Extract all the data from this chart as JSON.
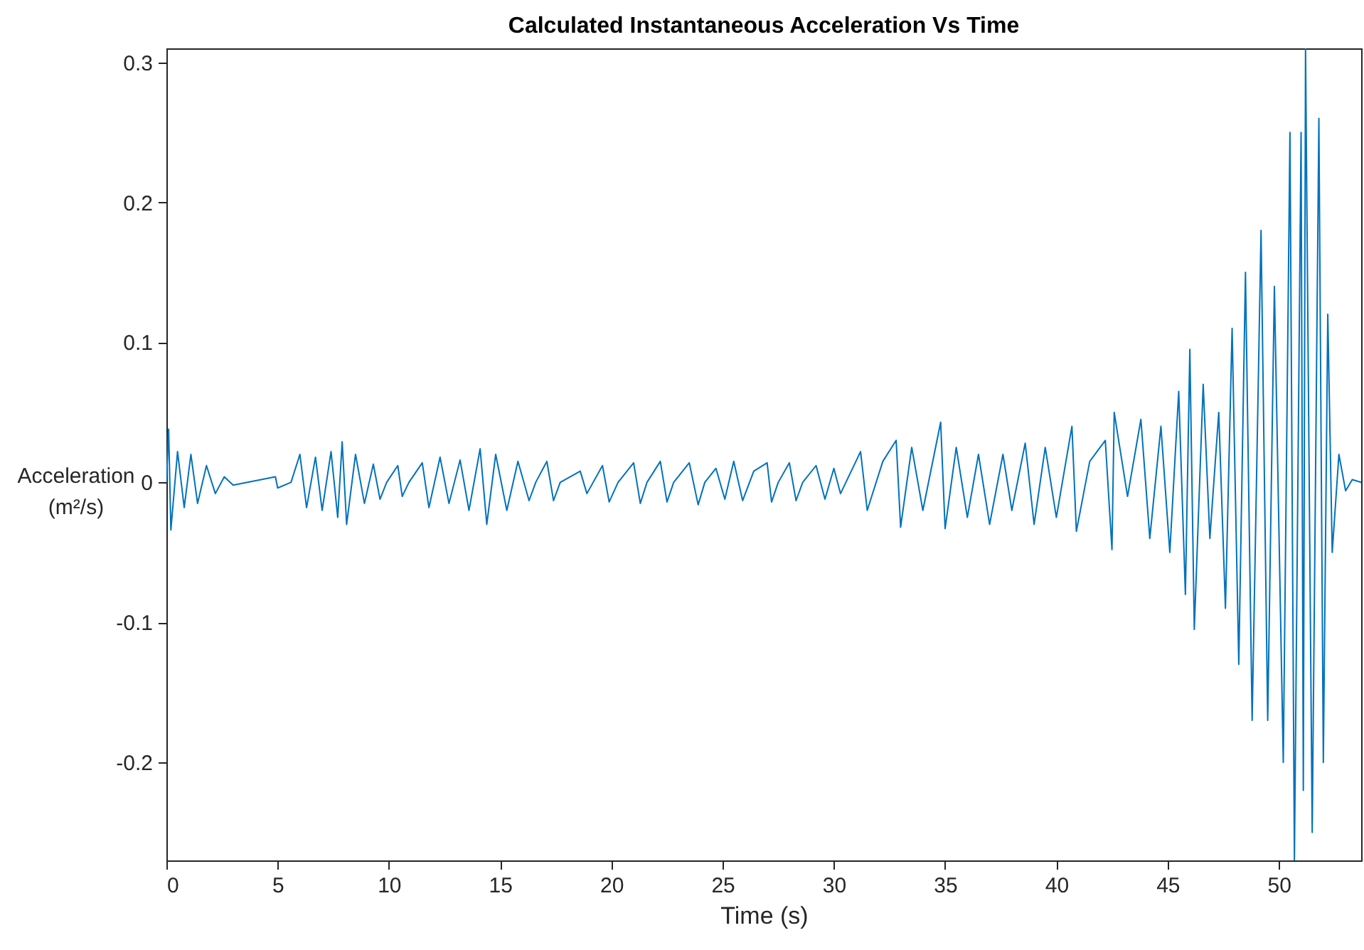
{
  "chart_data": {
    "type": "line",
    "title": "Calculated Instantaneous Acceleration Vs Time",
    "xlabel": "Time (s)",
    "ylabel": "Acceleration\n(m²/s)",
    "xlim": [
      0,
      53.7
    ],
    "xticks": [
      0,
      5,
      10,
      15,
      20,
      25,
      30,
      35,
      40,
      45,
      50
    ],
    "ylim": [
      -0.27,
      0.31
    ],
    "yticks": [
      -0.2,
      -0.1,
      0,
      0.1,
      0.2,
      0.3
    ],
    "grid": false,
    "line_style": "solid",
    "marker": "none",
    "series": [
      {
        "color": "#0072bd",
        "x": [
          0,
          0.1,
          0.2,
          0.5,
          0.8,
          1.1,
          1.4,
          1.8,
          2.2,
          2.6,
          3,
          4.9,
          5,
          5.6,
          6,
          6.3,
          6.7,
          7,
          7.4,
          7.7,
          7.9,
          8.1,
          8.5,
          8.9,
          9.3,
          9.6,
          9.9,
          10.4,
          10.6,
          10.9,
          11.5,
          11.8,
          12.3,
          12.7,
          13.2,
          13.6,
          14.1,
          14.4,
          14.8,
          15.3,
          15.8,
          16.3,
          16.6,
          17.1,
          17.4,
          17.7,
          18.6,
          18.9,
          19.6,
          19.9,
          20.3,
          21,
          21.3,
          21.6,
          22.2,
          22.5,
          22.8,
          23.5,
          23.9,
          24.2,
          24.7,
          25.1,
          25.5,
          25.9,
          26.4,
          27,
          27.2,
          27.5,
          28,
          28.3,
          28.6,
          29.2,
          29.6,
          30,
          30.3,
          31.2,
          31.5,
          32.2,
          32.8,
          33,
          33.5,
          34,
          34.8,
          35,
          35.5,
          36,
          36.5,
          37,
          37.6,
          38,
          38.6,
          39,
          39.5,
          40,
          40.7,
          40.9,
          41.5,
          42.2,
          42.5,
          42.6,
          43.2,
          43.8,
          44.2,
          44.7,
          45.1,
          45.5,
          45.8,
          46,
          46.2,
          46.6,
          46.9,
          47.3,
          47.6,
          47.9,
          48.2,
          48.5,
          48.8,
          49.2,
          49.5,
          49.8,
          50.2,
          50.5,
          50.7,
          51,
          51.1,
          51.2,
          51.5,
          51.8,
          52,
          52.2,
          52.4,
          52.7,
          53,
          53.3,
          53.7
        ],
        "values": [
          0,
          0.038,
          -0.034,
          0.022,
          -0.018,
          0.02,
          -0.015,
          0.012,
          -0.008,
          0.004,
          -0.002,
          0.004,
          -0.004,
          0,
          0.02,
          -0.018,
          0.018,
          -0.02,
          0.022,
          -0.025,
          0.029,
          -0.03,
          0.02,
          -0.015,
          0.013,
          -0.012,
          0,
          0.012,
          -0.01,
          0,
          0.014,
          -0.018,
          0.018,
          -0.015,
          0.016,
          -0.02,
          0.024,
          -0.03,
          0.02,
          -0.02,
          0.015,
          -0.013,
          0,
          0.015,
          -0.013,
          0,
          0.008,
          -0.008,
          0.012,
          -0.014,
          0,
          0.014,
          -0.015,
          0,
          0.015,
          -0.014,
          0,
          0.014,
          -0.016,
          0,
          0.01,
          -0.012,
          0.015,
          -0.013,
          0.008,
          0.014,
          -0.014,
          0,
          0.014,
          -0.013,
          0,
          0.012,
          -0.012,
          0.01,
          -0.008,
          0.022,
          -0.02,
          0.015,
          0.03,
          -0.032,
          0.025,
          -0.02,
          0.043,
          -0.033,
          0.025,
          -0.025,
          0.02,
          -0.03,
          0.02,
          -0.02,
          0.028,
          -0.03,
          0.025,
          -0.025,
          0.04,
          -0.035,
          0.015,
          0.03,
          -0.048,
          0.05,
          -0.01,
          0.045,
          -0.04,
          0.04,
          -0.05,
          0.065,
          -0.08,
          0.095,
          -0.105,
          0.07,
          -0.04,
          0.05,
          -0.09,
          0.11,
          -0.13,
          0.15,
          -0.17,
          0.18,
          -0.17,
          0.14,
          -0.2,
          0.25,
          -0.27,
          0.25,
          -0.22,
          0.31,
          -0.25,
          0.26,
          -0.2,
          0.12,
          -0.05,
          0.02,
          -0.006,
          0.002,
          0
        ]
      }
    ]
  }
}
